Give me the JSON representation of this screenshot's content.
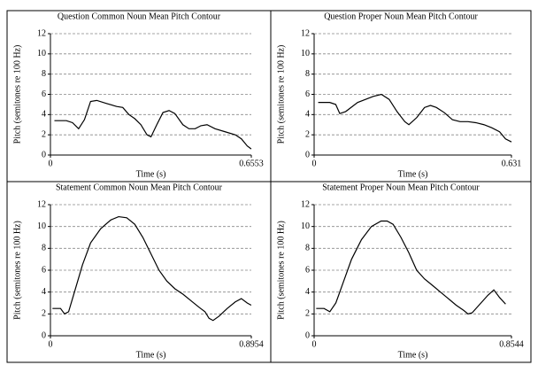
{
  "chart_data": [
    {
      "type": "line",
      "title": "Question Common Noun Mean Pitch Contour",
      "xlabel": "Time (s)",
      "ylabel": "Pitch (semitones re 100 Hz)",
      "xlim": [
        0,
        0.6553
      ],
      "xticks": [
        0,
        0.6553
      ],
      "ylim": [
        0,
        12
      ],
      "yticks": [
        0,
        2,
        4,
        6,
        8,
        10,
        12
      ],
      "grid": true,
      "color": "#000000",
      "x": [
        0.013,
        0.052,
        0.072,
        0.092,
        0.111,
        0.131,
        0.151,
        0.183,
        0.216,
        0.236,
        0.256,
        0.275,
        0.295,
        0.315,
        0.328,
        0.347,
        0.367,
        0.387,
        0.406,
        0.432,
        0.452,
        0.472,
        0.491,
        0.511,
        0.537,
        0.57,
        0.603,
        0.623,
        0.642,
        0.655
      ],
      "values": [
        3.4,
        3.4,
        3.2,
        2.6,
        3.5,
        5.3,
        5.4,
        5.1,
        4.8,
        4.7,
        4.0,
        3.6,
        3.0,
        2.0,
        1.8,
        3.0,
        4.2,
        4.4,
        4.1,
        3.0,
        2.6,
        2.6,
        2.9,
        3.0,
        2.6,
        2.3,
        2.0,
        1.6,
        0.9,
        0.6
      ]
    },
    {
      "type": "line",
      "title": "Question Proper Noun Mean Pitch Contour",
      "xlabel": "Time (s)",
      "ylabel": "Pitch (semitones re 100 Hz)",
      "xlim": [
        0,
        0.631
      ],
      "xticks": [
        0,
        0.631
      ],
      "ylim": [
        0,
        12
      ],
      "yticks": [
        0,
        2,
        4,
        6,
        8,
        10,
        12
      ],
      "grid": true,
      "color": "#000000",
      "x": [
        0.013,
        0.05,
        0.069,
        0.082,
        0.101,
        0.139,
        0.189,
        0.215,
        0.24,
        0.265,
        0.29,
        0.303,
        0.328,
        0.353,
        0.372,
        0.391,
        0.416,
        0.442,
        0.467,
        0.492,
        0.517,
        0.543,
        0.568,
        0.593,
        0.612,
        0.631
      ],
      "values": [
        5.2,
        5.2,
        5.0,
        4.1,
        4.3,
        5.2,
        5.8,
        6.0,
        5.5,
        4.3,
        3.3,
        3.0,
        3.7,
        4.7,
        4.9,
        4.7,
        4.2,
        3.5,
        3.3,
        3.3,
        3.2,
        3.0,
        2.7,
        2.3,
        1.6,
        1.3
      ]
    },
    {
      "type": "line",
      "title": "Statement Common Noun Mean Pitch Contour",
      "xlabel": "Time (s)",
      "ylabel": "Pitch (semitones re 100 Hz)",
      "xlim": [
        0,
        0.8954
      ],
      "xticks": [
        0,
        0.8954
      ],
      "ylim": [
        0,
        12
      ],
      "yticks": [
        0,
        2,
        4,
        6,
        8,
        10,
        12
      ],
      "grid": true,
      "color": "#000000",
      "x": [
        0.009,
        0.045,
        0.063,
        0.081,
        0.107,
        0.143,
        0.179,
        0.224,
        0.269,
        0.304,
        0.34,
        0.376,
        0.412,
        0.448,
        0.484,
        0.519,
        0.555,
        0.591,
        0.627,
        0.663,
        0.689,
        0.707,
        0.725,
        0.752,
        0.788,
        0.824,
        0.851,
        0.877,
        0.895
      ],
      "values": [
        2.5,
        2.5,
        2.0,
        2.2,
        4.0,
        6.5,
        8.5,
        9.8,
        10.6,
        10.9,
        10.8,
        10.2,
        9.0,
        7.5,
        6.0,
        5.0,
        4.3,
        3.8,
        3.2,
        2.6,
        2.2,
        1.6,
        1.4,
        1.8,
        2.5,
        3.1,
        3.4,
        3.0,
        2.8
      ]
    },
    {
      "type": "line",
      "title": "Statement Proper Noun Mean Pitch Contour",
      "xlabel": "Time (s)",
      "ylabel": "Pitch (semitones re 100 Hz)",
      "xlim": [
        0,
        0.8544
      ],
      "xticks": [
        0,
        0.8544
      ],
      "ylim": [
        0,
        12
      ],
      "yticks": [
        0,
        2,
        4,
        6,
        8,
        10,
        12
      ],
      "grid": true,
      "color": "#000000",
      "x": [
        0.009,
        0.043,
        0.068,
        0.094,
        0.128,
        0.162,
        0.205,
        0.248,
        0.29,
        0.316,
        0.342,
        0.376,
        0.41,
        0.444,
        0.478,
        0.513,
        0.547,
        0.581,
        0.615,
        0.649,
        0.666,
        0.684,
        0.718,
        0.752,
        0.778,
        0.803,
        0.829
      ],
      "values": [
        2.5,
        2.5,
        2.2,
        3.0,
        5.0,
        7.0,
        8.8,
        10.0,
        10.5,
        10.5,
        10.2,
        9.0,
        7.6,
        6.0,
        5.2,
        4.6,
        4.0,
        3.4,
        2.8,
        2.3,
        2.0,
        2.1,
        2.9,
        3.7,
        4.2,
        3.5,
        2.9
      ]
    }
  ]
}
